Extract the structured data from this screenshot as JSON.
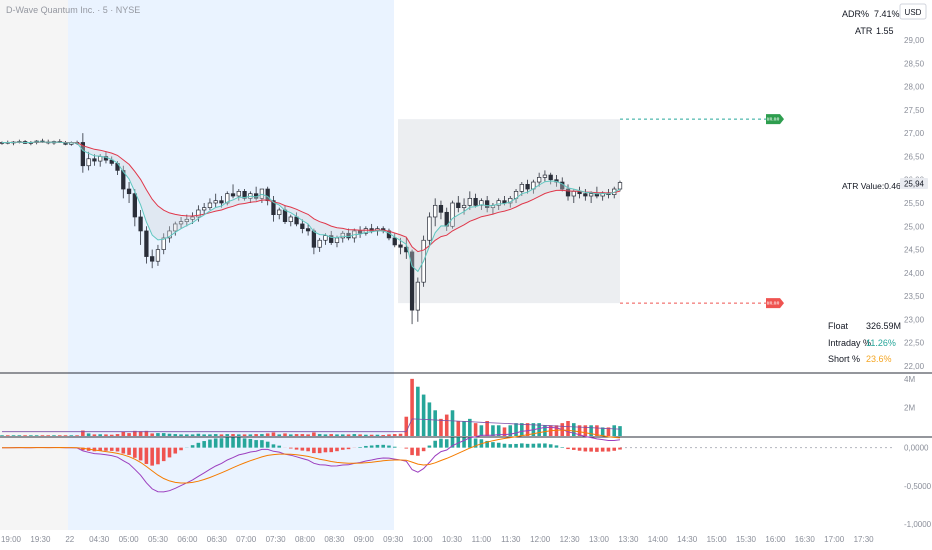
{
  "header": {
    "title": "D-Wave Quantum Inc. · 5 · NYSE",
    "currency": "USD"
  },
  "top_stats": [
    {
      "label": "ADR%",
      "value": "7.41%"
    },
    {
      "label": "ATR",
      "value": "1.55"
    }
  ],
  "atr_label": "ATR Value:0.46",
  "last_price_tag": "25,94",
  "target_tags": {
    "upper": "##.##",
    "lower": "##.##"
  },
  "bottom_stats": [
    {
      "label": "Float",
      "value": "326.59M",
      "color": "#131722"
    },
    {
      "label": "Intraday %",
      "value": "11.26%",
      "color": "#26a69a"
    },
    {
      "label": "Short %",
      "value": "23.6%",
      "color": "#f5a623"
    }
  ],
  "colors": {
    "up": "#26a69a",
    "down": "#ef5350",
    "ema_fast": "#5fc7c0",
    "ema_slow": "#e0374a",
    "macd": "#9c3fbf",
    "signal": "#f57c00",
    "premarket_bg": "#eaf3ff",
    "afterhours_bg": "#f5f5f5"
  },
  "chart_data": {
    "type": "candlestick",
    "price_axis": {
      "ticks": [
        "29,00",
        "28,50",
        "28,00",
        "27,50",
        "27,00",
        "26,50",
        "26,00",
        "25,50",
        "25,00",
        "24,50",
        "24,00",
        "23,50",
        "23,00",
        "22,50",
        "22,00"
      ],
      "range": [
        22.0,
        29.0
      ]
    },
    "volume_axis": {
      "ticks": [
        "4M",
        "2M"
      ],
      "range": [
        0,
        4.2
      ]
    },
    "macd_axis": {
      "ticks": [
        "0,0000",
        "-0,5000",
        "-1,0000"
      ],
      "range": [
        -1.05,
        0.1
      ]
    },
    "x_ticks": [
      "19:00",
      "19:30",
      "22",
      "04:30",
      "05:00",
      "05:30",
      "06:00",
      "06:30",
      "07:00",
      "07:30",
      "08:00",
      "08:30",
      "09:00",
      "09:30",
      "10:00",
      "10:30",
      "11:00",
      "11:30",
      "12:00",
      "12:30",
      "13:00",
      "13:30",
      "14:00",
      "14:30",
      "15:00",
      "15:30",
      "16:00",
      "16:30",
      "17:00",
      "17:30"
    ],
    "levels": {
      "upper_target": 27.3,
      "lower_target": 23.35,
      "box_top": 27.3,
      "box_bottom": 23.35
    },
    "candles": [
      [
        26.78,
        26.82,
        26.75,
        26.8
      ],
      [
        26.8,
        26.84,
        26.76,
        26.79
      ],
      [
        26.79,
        26.83,
        26.74,
        26.81
      ],
      [
        26.81,
        26.86,
        26.78,
        26.82
      ],
      [
        26.82,
        26.85,
        26.77,
        26.78
      ],
      [
        26.78,
        26.83,
        26.74,
        26.8
      ],
      [
        26.8,
        26.85,
        26.76,
        26.83
      ],
      [
        26.83,
        26.88,
        26.79,
        26.81
      ],
      [
        26.81,
        26.86,
        26.76,
        26.79
      ],
      [
        26.79,
        26.84,
        26.75,
        26.82
      ],
      [
        26.82,
        26.87,
        26.79,
        26.8
      ],
      [
        26.8,
        26.83,
        26.74,
        26.76
      ],
      [
        26.76,
        26.82,
        26.73,
        26.8
      ],
      [
        26.8,
        26.84,
        26.75,
        26.78
      ],
      [
        26.8,
        27.0,
        26.15,
        26.3
      ],
      [
        26.3,
        26.6,
        26.2,
        26.45
      ],
      [
        26.45,
        26.55,
        26.3,
        26.4
      ],
      [
        26.4,
        26.55,
        26.28,
        26.5
      ],
      [
        26.5,
        26.6,
        26.35,
        26.42
      ],
      [
        26.42,
        26.5,
        26.3,
        26.35
      ],
      [
        26.35,
        26.4,
        26.1,
        26.2
      ],
      [
        26.2,
        26.3,
        25.6,
        25.8
      ],
      [
        25.8,
        25.95,
        25.5,
        25.7
      ],
      [
        25.7,
        25.8,
        25.0,
        25.2
      ],
      [
        25.2,
        25.35,
        24.6,
        24.9
      ],
      [
        24.9,
        25.0,
        24.2,
        24.35
      ],
      [
        24.35,
        24.5,
        24.1,
        24.25
      ],
      [
        24.25,
        24.6,
        24.15,
        24.5
      ],
      [
        24.5,
        24.85,
        24.4,
        24.75
      ],
      [
        24.75,
        25.0,
        24.65,
        24.9
      ],
      [
        24.9,
        25.1,
        24.8,
        25.05
      ],
      [
        25.05,
        25.2,
        24.95,
        25.1
      ],
      [
        25.1,
        25.25,
        25.0,
        25.15
      ],
      [
        25.15,
        25.3,
        25.05,
        25.2
      ],
      [
        25.2,
        25.45,
        25.1,
        25.35
      ],
      [
        25.35,
        25.5,
        25.25,
        25.4
      ],
      [
        25.4,
        25.6,
        25.35,
        25.5
      ],
      [
        25.5,
        25.7,
        25.4,
        25.55
      ],
      [
        25.55,
        25.65,
        25.4,
        25.5
      ],
      [
        25.5,
        25.75,
        25.45,
        25.7
      ],
      [
        25.7,
        25.9,
        25.6,
        25.65
      ],
      [
        25.65,
        25.8,
        25.55,
        25.75
      ],
      [
        25.75,
        25.8,
        25.55,
        25.6
      ],
      [
        25.6,
        25.75,
        25.5,
        25.7
      ],
      [
        25.7,
        25.85,
        25.55,
        25.6
      ],
      [
        25.6,
        25.8,
        25.5,
        25.8
      ],
      [
        25.8,
        25.85,
        25.45,
        25.55
      ],
      [
        25.55,
        25.65,
        25.1,
        25.25
      ],
      [
        25.25,
        25.4,
        25.15,
        25.35
      ],
      [
        25.35,
        25.45,
        25.05,
        25.1
      ],
      [
        25.1,
        25.25,
        25.0,
        25.2
      ],
      [
        25.2,
        25.3,
        25.0,
        25.05
      ],
      [
        25.05,
        25.15,
        24.85,
        24.95
      ],
      [
        24.95,
        25.05,
        24.8,
        24.9
      ],
      [
        24.9,
        24.95,
        24.4,
        24.55
      ],
      [
        24.55,
        24.75,
        24.45,
        24.7
      ],
      [
        24.7,
        24.85,
        24.6,
        24.8
      ],
      [
        24.8,
        24.9,
        24.6,
        24.65
      ],
      [
        24.65,
        24.8,
        24.55,
        24.75
      ],
      [
        24.75,
        24.9,
        24.65,
        24.85
      ],
      [
        24.85,
        24.95,
        24.7,
        24.75
      ],
      [
        24.75,
        24.95,
        24.65,
        24.9
      ],
      [
        24.9,
        25.0,
        24.75,
        24.85
      ],
      [
        24.85,
        25.0,
        24.8,
        24.95
      ],
      [
        24.95,
        25.05,
        24.85,
        24.9
      ],
      [
        24.9,
        25.0,
        24.8,
        24.95
      ],
      [
        24.95,
        25.0,
        24.85,
        24.9
      ],
      [
        24.9,
        24.95,
        24.7,
        24.75
      ],
      [
        24.75,
        24.85,
        24.55,
        24.6
      ],
      [
        24.6,
        24.75,
        24.4,
        24.55
      ],
      [
        24.55,
        24.75,
        24.3,
        24.45
      ],
      [
        24.45,
        24.5,
        22.9,
        23.2
      ],
      [
        23.2,
        23.9,
        22.95,
        23.8
      ],
      [
        23.8,
        24.8,
        23.7,
        24.7
      ],
      [
        24.7,
        25.3,
        24.6,
        25.2
      ],
      [
        25.2,
        25.6,
        25.0,
        25.45
      ],
      [
        25.45,
        25.55,
        25.15,
        25.3
      ],
      [
        25.3,
        25.4,
        24.9,
        25.0
      ],
      [
        25.0,
        25.55,
        24.95,
        25.5
      ],
      [
        25.5,
        25.65,
        25.3,
        25.4
      ],
      [
        25.4,
        25.6,
        25.25,
        25.45
      ],
      [
        25.45,
        25.75,
        25.35,
        25.6
      ],
      [
        25.6,
        25.7,
        25.4,
        25.45
      ],
      [
        25.45,
        25.6,
        25.35,
        25.55
      ],
      [
        25.55,
        25.65,
        25.3,
        25.4
      ],
      [
        25.4,
        25.5,
        25.25,
        25.45
      ],
      [
        25.45,
        25.6,
        25.35,
        25.55
      ],
      [
        25.55,
        25.65,
        25.45,
        25.5
      ],
      [
        25.5,
        25.65,
        25.4,
        25.6
      ],
      [
        25.6,
        25.8,
        25.5,
        25.75
      ],
      [
        25.75,
        25.95,
        25.65,
        25.9
      ],
      [
        25.9,
        26.0,
        25.7,
        25.8
      ],
      [
        25.8,
        26.0,
        25.7,
        25.95
      ],
      [
        25.95,
        26.15,
        25.85,
        26.05
      ],
      [
        26.05,
        26.2,
        25.95,
        26.1
      ],
      [
        26.1,
        26.15,
        25.9,
        26.0
      ],
      [
        26.0,
        26.1,
        25.85,
        25.95
      ],
      [
        25.95,
        26.05,
        25.75,
        25.8
      ],
      [
        25.8,
        25.9,
        25.55,
        25.65
      ],
      [
        25.65,
        25.8,
        25.5,
        25.75
      ],
      [
        25.75,
        25.85,
        25.6,
        25.7
      ],
      [
        25.7,
        25.8,
        25.55,
        25.65
      ],
      [
        25.65,
        25.75,
        25.5,
        25.7
      ],
      [
        25.7,
        25.85,
        25.6,
        25.65
      ],
      [
        25.65,
        25.75,
        25.55,
        25.72
      ],
      [
        25.72,
        25.8,
        25.6,
        25.68
      ],
      [
        25.68,
        25.85,
        25.6,
        25.8
      ],
      [
        25.8,
        25.98,
        25.75,
        25.94
      ]
    ]
  }
}
